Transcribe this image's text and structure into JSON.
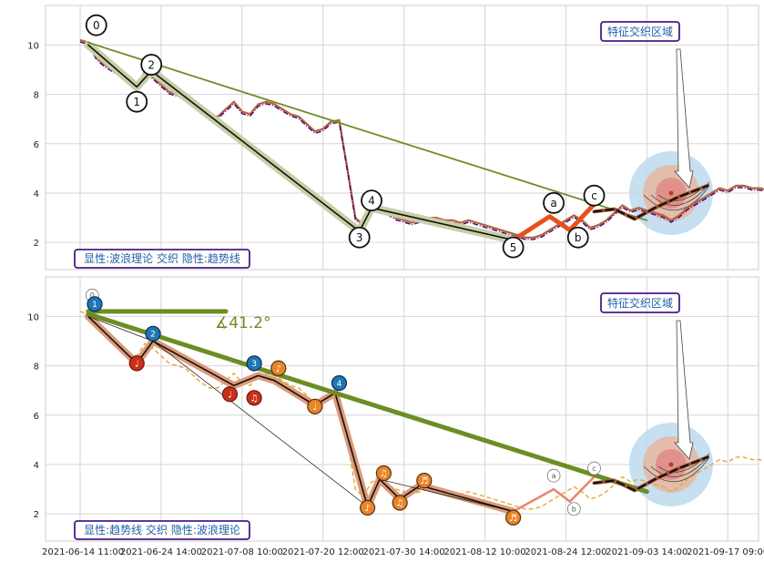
{
  "chart_data": [
    {
      "type": "line",
      "panel": "top",
      "ylim": [
        0.9,
        11.6
      ],
      "yticks": [
        2,
        4,
        6,
        8,
        10
      ],
      "grid": true,
      "series": [
        {
          "role": "price",
          "style": "brown solid with purple dash-dot overlay",
          "x": [
            0,
            1,
            2,
            3,
            4,
            5,
            6,
            7,
            8,
            9,
            10,
            11,
            12,
            13,
            14,
            15,
            16,
            17,
            18,
            19,
            20,
            21,
            22,
            23,
            24,
            25,
            26,
            27,
            28,
            29,
            30,
            31,
            32,
            33,
            34,
            35,
            36,
            37,
            38,
            39,
            40,
            41,
            42,
            43,
            44,
            45,
            46,
            47,
            48,
            49,
            50,
            51,
            52,
            53,
            54,
            55,
            56,
            57,
            58,
            59,
            60,
            61,
            62,
            63,
            64,
            65,
            66,
            67,
            68,
            69,
            70,
            71,
            72,
            73,
            74,
            75,
            76,
            77,
            78,
            79,
            80,
            81,
            82,
            83,
            84,
            85,
            86,
            87,
            88,
            89,
            90,
            91,
            92,
            93,
            94,
            95
          ],
          "y": [
            10.2,
            10.1,
            9.5,
            9.2,
            9.0,
            8.8,
            8.5,
            8.4,
            8.9,
            8.7,
            8.4,
            8.1,
            8.0,
            7.9,
            7.6,
            7.3,
            7.1,
            7.1,
            7.4,
            7.7,
            7.3,
            7.2,
            7.6,
            7.7,
            7.6,
            7.4,
            7.2,
            7.1,
            6.8,
            6.5,
            6.6,
            6.9,
            6.95,
            5.0,
            3.0,
            2.7,
            3.3,
            3.4,
            3.2,
            3.0,
            2.9,
            2.8,
            2.9,
            3.0,
            3.0,
            2.9,
            2.9,
            2.8,
            2.9,
            2.8,
            2.7,
            2.6,
            2.5,
            2.4,
            2.3,
            2.2,
            2.2,
            2.3,
            2.5,
            2.7,
            2.9,
            3.1,
            2.9,
            2.6,
            2.7,
            2.9,
            3.2,
            3.5,
            3.3,
            3.4,
            3.3,
            3.2,
            3.1,
            2.9,
            3.1,
            3.4,
            3.6,
            3.8,
            4.0,
            4.2,
            4.1,
            4.3,
            4.3,
            4.2,
            4.2,
            4.1,
            4.1,
            4.2,
            4.2,
            4.3,
            4.3,
            4.2,
            4.2,
            4.3,
            4.2,
            4.2
          ]
        },
        {
          "role": "wave-path",
          "style": "black line with olive halo",
          "points": [
            [
              1,
              10.0
            ],
            [
              7,
              8.3
            ],
            [
              8.8,
              8.95
            ],
            [
              34.5,
              2.45
            ],
            [
              36,
              3.4
            ],
            [
              53.5,
              2.1
            ]
          ]
        },
        {
          "role": "corrective-path",
          "style": "thick orange-red",
          "points": [
            [
              53.5,
              2.1
            ],
            [
              58,
              3.05
            ],
            [
              60.5,
              2.5
            ],
            [
              63.5,
              3.55
            ]
          ]
        },
        {
          "role": "trendline",
          "style": "olive green",
          "points": [
            [
              1,
              10.1
            ],
            [
              31.5,
              6.9
            ],
            [
              70,
              2.9
            ]
          ]
        },
        {
          "role": "projection",
          "style": "brown with black dashed overlay",
          "points": [
            [
              63.5,
              3.25
            ],
            [
              66,
              3.35
            ],
            [
              68.5,
              2.95
            ],
            [
              71,
              3.4
            ],
            [
              74,
              3.85
            ],
            [
              77.5,
              4.3
            ]
          ]
        }
      ],
      "wave_labels": [
        {
          "label": "0",
          "x": 2,
          "y": 10.8
        },
        {
          "label": "1",
          "x": 7,
          "y": 7.7
        },
        {
          "label": "2",
          "x": 8.8,
          "y": 9.2
        },
        {
          "label": "3",
          "x": 34.5,
          "y": 2.2
        },
        {
          "label": "4",
          "x": 36,
          "y": 3.7
        },
        {
          "label": "5",
          "x": 53.5,
          "y": 1.8
        },
        {
          "label": "a",
          "x": 58.5,
          "y": 3.6
        },
        {
          "label": "b",
          "x": 61.5,
          "y": 2.2
        },
        {
          "label": "c",
          "x": 63.5,
          "y": 3.9
        }
      ],
      "zone_label": "特征交织区域",
      "legend": "显性:波浪理论 交织 隐性:趋势线"
    },
    {
      "type": "line",
      "panel": "bottom",
      "ylim": [
        0.9,
        11.6
      ],
      "yticks": [
        2,
        4,
        6,
        8,
        10
      ],
      "grid": true,
      "xticks": [
        "2021-06-14 11:00",
        "2021-06-24 14:00",
        "2021-07-08 10:00",
        "2021-07-20 12:00",
        "2021-07-30 14:00",
        "2021-08-12 10:00",
        "2021-08-24 12:00",
        "2021-09-03 14:00",
        "2021-09-17 09:00"
      ],
      "series": [
        {
          "role": "price",
          "style": "orange dashed",
          "x": [
            0,
            1,
            2,
            3,
            4,
            5,
            6,
            7,
            8,
            9,
            10,
            11,
            12,
            13,
            14,
            15,
            16,
            17,
            18,
            19,
            20,
            21,
            22,
            23,
            24,
            25,
            26,
            27,
            28,
            29,
            30,
            31,
            32,
            33,
            34,
            35,
            36,
            37,
            38,
            39,
            40,
            41,
            42,
            43,
            44,
            45,
            46,
            47,
            48,
            49,
            50,
            51,
            52,
            53,
            54,
            55,
            56,
            57,
            58,
            59,
            60,
            61,
            62,
            63,
            64,
            65,
            66,
            67,
            68,
            69,
            70,
            71,
            72,
            73,
            74,
            75,
            76,
            77,
            78,
            79,
            80,
            81,
            82,
            83,
            84,
            85,
            86,
            87,
            88,
            89,
            90,
            91,
            92,
            93,
            94,
            95
          ],
          "y": [
            10.2,
            10.1,
            9.5,
            9.2,
            9.0,
            8.8,
            8.5,
            8.4,
            8.9,
            8.7,
            8.4,
            8.1,
            8.0,
            7.9,
            7.6,
            7.3,
            7.1,
            7.1,
            7.4,
            7.7,
            7.3,
            7.2,
            7.6,
            7.7,
            7.6,
            7.4,
            7.2,
            7.1,
            6.8,
            6.5,
            6.6,
            6.9,
            6.95,
            5.0,
            3.0,
            2.7,
            3.3,
            3.4,
            3.2,
            3.0,
            2.9,
            2.8,
            2.9,
            3.0,
            3.0,
            2.9,
            2.9,
            2.8,
            2.9,
            2.8,
            2.7,
            2.6,
            2.5,
            2.4,
            2.3,
            2.2,
            2.2,
            2.3,
            2.5,
            2.7,
            2.9,
            3.1,
            2.9,
            2.6,
            2.7,
            2.9,
            3.2,
            3.5,
            3.3,
            3.4,
            3.3,
            3.2,
            3.1,
            2.9,
            3.1,
            3.4,
            3.6,
            3.8,
            4.0,
            4.2,
            4.1,
            4.3,
            4.3,
            4.2,
            4.2,
            4.1,
            4.1,
            4.2,
            4.2,
            4.3,
            4.3,
            4.2,
            4.2,
            4.3,
            4.2,
            4.2
          ]
        },
        {
          "role": "swing-path",
          "style": "black line with salmon halo",
          "points": [
            [
              1,
              10.0
            ],
            [
              7,
              8.1
            ],
            [
              9,
              9.0
            ],
            [
              19,
              7.2
            ],
            [
              22,
              7.6
            ],
            [
              24,
              7.4
            ],
            [
              29,
              6.4
            ],
            [
              31.5,
              6.9
            ],
            [
              35.5,
              2.3
            ],
            [
              37,
              3.4
            ],
            [
              39.5,
              2.6
            ],
            [
              42,
              3.15
            ],
            [
              53.5,
              2.1
            ]
          ]
        },
        {
          "role": "minor-wave",
          "style": "thin black",
          "points": [
            [
              1,
              10.0
            ],
            [
              9,
              9.0
            ],
            [
              35.5,
              2.3
            ],
            [
              37,
              3.4
            ],
            [
              53.5,
              2.1
            ]
          ]
        },
        {
          "role": "corrective-path",
          "style": "salmon",
          "points": [
            [
              53.5,
              2.1
            ],
            [
              58.5,
              3.0
            ],
            [
              60.5,
              2.5
            ],
            [
              63.5,
              3.5
            ]
          ]
        },
        {
          "role": "trendline",
          "style": "thick olive green",
          "points": [
            [
              1,
              10.1
            ],
            [
              31.5,
              6.9
            ],
            [
              70,
              2.9
            ]
          ]
        },
        {
          "role": "horizontal-reference",
          "style": "thick olive green",
          "points": [
            [
              1,
              10.2
            ],
            [
              18,
              10.2
            ]
          ]
        },
        {
          "role": "projection",
          "style": "brown with black dashed overlay",
          "points": [
            [
              63.5,
              3.25
            ],
            [
              66,
              3.35
            ],
            [
              68.5,
              2.95
            ],
            [
              71,
              3.4
            ],
            [
              74,
              3.85
            ],
            [
              77.5,
              4.3
            ]
          ]
        }
      ],
      "angle_label": "∡41.2°",
      "wave_labels": [
        {
          "label": "0",
          "x": 1.5,
          "y": 10.85,
          "kind": "ring"
        },
        {
          "label": "1",
          "x": 1.8,
          "y": 10.5,
          "kind": "blue"
        },
        {
          "label": "2",
          "x": 9,
          "y": 9.3,
          "kind": "blue"
        },
        {
          "label": "3",
          "x": 21.5,
          "y": 8.1,
          "kind": "blue"
        },
        {
          "label": "4",
          "x": 32,
          "y": 7.3,
          "kind": "blue"
        },
        {
          "label": "♩",
          "x": 7,
          "y": 8.1,
          "kind": "red"
        },
        {
          "label": "♩",
          "x": 18.5,
          "y": 6.85,
          "kind": "red"
        },
        {
          "label": "♫",
          "x": 21.5,
          "y": 6.7,
          "kind": "red"
        },
        {
          "label": "♪",
          "x": 24.5,
          "y": 7.9,
          "kind": "orange"
        },
        {
          "label": "♩",
          "x": 29,
          "y": 6.35,
          "kind": "orange"
        },
        {
          "label": "♪",
          "x": 35.5,
          "y": 2.25,
          "kind": "orange"
        },
        {
          "label": "♫",
          "x": 37.5,
          "y": 3.65,
          "kind": "orange"
        },
        {
          "label": "♫",
          "x": 39.5,
          "y": 2.45,
          "kind": "orange"
        },
        {
          "label": "♬",
          "x": 42.5,
          "y": 3.35,
          "kind": "orange"
        },
        {
          "label": "♬",
          "x": 53.5,
          "y": 1.85,
          "kind": "orange"
        },
        {
          "label": "a",
          "x": 58.5,
          "y": 3.55,
          "kind": "ring"
        },
        {
          "label": "b",
          "x": 61,
          "y": 2.2,
          "kind": "ring"
        },
        {
          "label": "c",
          "x": 63.5,
          "y": 3.85,
          "kind": "ring"
        }
      ],
      "zone_label": "特征交织区域",
      "legend": "显性:趋势线 交织 隐性:波浪理论"
    }
  ]
}
